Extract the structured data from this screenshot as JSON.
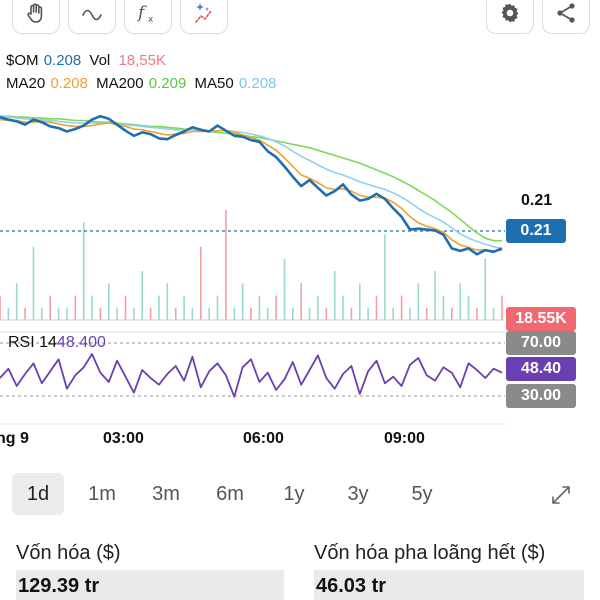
{
  "toolbar": {
    "buttons": [
      {
        "name": "hand-tool-icon"
      },
      {
        "name": "line-tool-icon"
      },
      {
        "name": "function-icon"
      },
      {
        "name": "ai-sparkle-icon"
      },
      {
        "name": "gear-icon"
      },
      {
        "name": "share-icon"
      }
    ]
  },
  "legend": {
    "symbol": "$OM",
    "price": "0.208",
    "vol_label": "Vol",
    "vol_value": "18,55K",
    "ma20_label": "MA20",
    "ma20_value": "0.208",
    "ma200_label": "MA200",
    "ma200_value": "0.209",
    "ma50_label": "MA50",
    "ma50_value": "0.208"
  },
  "price_axis": {
    "ma_tag": "0.21",
    "price_tag": "0.21",
    "volume_tag": "18.55K"
  },
  "rsi": {
    "label": "RSI 14",
    "value": "48.400",
    "upper": "70.00",
    "current": "48.40",
    "lower": "30.00"
  },
  "time_axis": {
    "labels": [
      "ng 9",
      "03:00",
      "06:00",
      "09:00"
    ]
  },
  "timeframes": {
    "items": [
      "1d",
      "1m",
      "3m",
      "6m",
      "1y",
      "3y",
      "5y"
    ],
    "active": "1d"
  },
  "stats": {
    "market_cap_label": "Vốn hóa ($)",
    "market_cap_value": "129.39 tr",
    "fdv_label": "Vốn hóa pha loãng hết ($)",
    "fdv_value": "46.03 tr"
  },
  "colors": {
    "price_line": "#1f6fb0",
    "ma20": "#f0a030",
    "ma200": "#7ed957",
    "ma50": "#8fd0f0",
    "volume_tag": "#f06870",
    "rsi_line": "#6a3fb0",
    "rsi_tag": "#6a3fb0",
    "rsi_level_tag": "#888888"
  },
  "chart_data": {
    "type": "line",
    "series": [
      {
        "name": "$OM",
        "values": [
          0.2235,
          0.2232,
          0.223,
          0.2226,
          0.2232,
          0.2229,
          0.2224,
          0.2222,
          0.2218,
          0.2221,
          0.2225,
          0.2232,
          0.2236,
          0.2233,
          0.2226,
          0.2219,
          0.2213,
          0.2217,
          0.2215,
          0.221,
          0.2209,
          0.2214,
          0.2218,
          0.2223,
          0.222,
          0.2218,
          0.2225,
          0.2219,
          0.2213,
          0.2212,
          0.2208,
          0.2206,
          0.2195,
          0.2188,
          0.2177,
          0.2165,
          0.2154,
          0.2161,
          0.2152,
          0.2143,
          0.2148,
          0.2156,
          0.2144,
          0.2137,
          0.2139,
          0.2145,
          0.2139,
          0.2128,
          0.2118,
          0.2103,
          0.2104,
          0.2103,
          0.2102,
          0.2097,
          0.2081,
          0.2078,
          0.2081,
          0.2074,
          0.2079,
          0.2077,
          0.2081
        ]
      },
      {
        "name": "MA20",
        "values": [
          0.2232,
          0.2231,
          0.2231,
          0.2229,
          0.2229,
          0.223,
          0.2229,
          0.2227,
          0.2225,
          0.2224,
          0.2224,
          0.2225,
          0.2227,
          0.2228,
          0.2226,
          0.2224,
          0.2221,
          0.222,
          0.2218,
          0.2216,
          0.2214,
          0.2215,
          0.2216,
          0.2218,
          0.2218,
          0.2218,
          0.2219,
          0.2219,
          0.2217,
          0.2214,
          0.2211,
          0.2208,
          0.2202,
          0.2196,
          0.2187,
          0.2177,
          0.2167,
          0.2163,
          0.2158,
          0.2152,
          0.215,
          0.2151,
          0.2148,
          0.2143,
          0.2141,
          0.2141,
          0.214,
          0.2135,
          0.2128,
          0.2118,
          0.2111,
          0.2107,
          0.2104,
          0.21,
          0.2091,
          0.2085,
          0.2082,
          0.2079,
          0.2079,
          0.2078,
          0.2079
        ]
      },
      {
        "name": "MA200",
        "values": [
          0.2236,
          0.2236,
          0.2235,
          0.2235,
          0.2234,
          0.2234,
          0.2233,
          0.2233,
          0.2232,
          0.2231,
          0.2231,
          0.223,
          0.2229,
          0.2229,
          0.2228,
          0.2227,
          0.2226,
          0.2225,
          0.2224,
          0.2224,
          0.2223,
          0.2222,
          0.2221,
          0.222,
          0.2219,
          0.2218,
          0.2217,
          0.2216,
          0.2215,
          0.2214,
          0.2212,
          0.2211,
          0.2209,
          0.2207,
          0.2205,
          0.2203,
          0.2201,
          0.2199,
          0.2196,
          0.2193,
          0.219,
          0.2187,
          0.2184,
          0.2181,
          0.2177,
          0.2173,
          0.2169,
          0.2165,
          0.216,
          0.2155,
          0.2149,
          0.2143,
          0.2137,
          0.213,
          0.2123,
          0.2115,
          0.2107,
          0.2099,
          0.2093,
          0.209,
          0.209
        ]
      },
      {
        "name": "MA50",
        "values": [
          0.2236,
          0.2235,
          0.2234,
          0.2233,
          0.2232,
          0.2232,
          0.2231,
          0.223,
          0.2229,
          0.2228,
          0.2228,
          0.2228,
          0.2228,
          0.2228,
          0.2227,
          0.2226,
          0.2225,
          0.2224,
          0.2223,
          0.2222,
          0.2221,
          0.222,
          0.222,
          0.222,
          0.222,
          0.2219,
          0.2219,
          0.2219,
          0.2218,
          0.2217,
          0.2215,
          0.2213,
          0.221,
          0.2206,
          0.2201,
          0.2195,
          0.2189,
          0.2184,
          0.2179,
          0.2174,
          0.217,
          0.2167,
          0.2163,
          0.2159,
          0.2156,
          0.2153,
          0.215,
          0.2146,
          0.2141,
          0.2135,
          0.2128,
          0.2122,
          0.2117,
          0.2112,
          0.2105,
          0.2098,
          0.2093,
          0.2089,
          0.2086,
          0.2083,
          0.2081
        ]
      }
    ],
    "rsi_values": [
      44,
      51,
      38,
      47,
      55,
      40,
      49,
      58,
      36,
      46,
      52,
      62,
      48,
      41,
      57,
      45,
      33,
      50,
      44,
      39,
      47,
      53,
      42,
      60,
      37,
      49,
      55,
      46,
      30,
      52,
      58,
      41,
      48,
      35,
      43,
      56,
      39,
      50,
      61,
      44,
      36,
      47,
      53,
      32,
      49,
      57,
      40,
      45,
      38,
      54,
      59,
      46,
      42,
      52,
      48,
      37,
      55,
      50,
      44,
      51,
      48
    ],
    "volume_values": [
      2,
      1,
      3,
      1,
      6,
      1,
      2,
      1,
      1,
      2,
      8,
      2,
      1,
      3,
      1,
      2,
      1,
      4,
      1,
      2,
      3,
      1,
      2,
      1,
      6,
      1,
      2,
      9,
      1,
      3,
      1,
      2,
      1,
      2,
      5,
      1,
      3,
      1,
      2,
      1,
      4,
      2,
      1,
      3,
      1,
      2,
      7,
      1,
      2,
      1,
      3,
      1,
      4,
      2,
      1,
      3,
      2,
      1,
      5,
      1,
      2
    ],
    "price_range": [
      0.2065,
      0.2255
    ],
    "rsi_range": [
      20,
      80
    ],
    "rsi_levels": [
      70,
      30
    ],
    "last_price": 0.208,
    "grid": false
  }
}
